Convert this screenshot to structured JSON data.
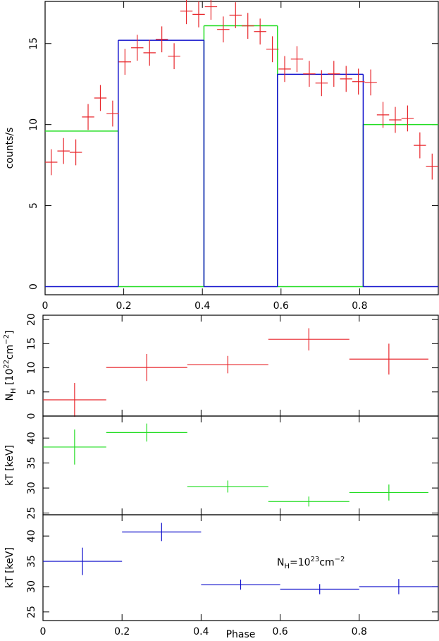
{
  "chart_data": [
    {
      "type": "errorbar",
      "ylabel": [
        {
          "text": "counts/s"
        }
      ],
      "xlim": [
        0,
        1
      ],
      "ylim": [
        -0.5,
        17.6
      ],
      "xticks": [
        0,
        0.2,
        0.4,
        0.6,
        0.8
      ],
      "yticks": [
        0,
        5,
        10,
        15
      ],
      "xtick_labels": true,
      "series": [
        {
          "color": "#e8262b",
          "x": [
            0.015625,
            0.046875,
            0.078125,
            0.109375,
            0.140625,
            0.171875,
            0.203125,
            0.234375,
            0.265625,
            0.296875,
            0.328125,
            0.359375,
            0.390625,
            0.421875,
            0.453125,
            0.484375,
            0.515625,
            0.546875,
            0.578125,
            0.609375,
            0.640625,
            0.671875,
            0.703125,
            0.734375,
            0.765625,
            0.796875,
            0.828125,
            0.859375,
            0.890625,
            0.921875,
            0.953125,
            0.984375
          ],
          "xerr": [
            0.015625,
            0.015625,
            0.015625,
            0.015625,
            0.015625,
            0.015625,
            0.015625,
            0.015625,
            0.015625,
            0.015625,
            0.015625,
            0.015625,
            0.015625,
            0.015625,
            0.015625,
            0.015625,
            0.015625,
            0.015625,
            0.015625,
            0.015625,
            0.015625,
            0.015625,
            0.015625,
            0.015625,
            0.015625,
            0.015625,
            0.015625,
            0.015625,
            0.015625,
            0.015625,
            0.015625,
            0.015625
          ],
          "values": [
            7.68,
            8.37,
            8.29,
            10.47,
            11.64,
            10.68,
            13.87,
            14.74,
            14.43,
            15.26,
            14.22,
            17.0,
            16.8,
            17.27,
            15.87,
            16.75,
            16.09,
            15.74,
            14.65,
            13.43,
            14.04,
            13.13,
            12.56,
            13.13,
            12.82,
            12.65,
            12.6,
            10.6,
            10.29,
            10.38,
            8.72,
            7.41
          ],
          "errors": [
            0.8,
            0.8,
            0.8,
            0.8,
            0.8,
            0.8,
            0.8,
            0.8,
            0.8,
            0.8,
            0.8,
            0.8,
            0.8,
            0.8,
            0.8,
            0.8,
            0.8,
            0.8,
            0.8,
            0.8,
            0.8,
            0.8,
            0.8,
            0.8,
            0.8,
            0.8,
            0.8,
            0.8,
            0.8,
            0.8,
            0.8,
            0.8
          ]
        }
      ],
      "steps": [
        {
          "color": "#22dd22",
          "bins": [
            0,
            0.186,
            0.404,
            0.591,
            0.809,
            1
          ],
          "values": [
            9.6,
            0,
            16.1,
            0,
            10.0
          ]
        },
        {
          "color": "#1010cc",
          "bins": [
            0,
            0.186,
            0.404,
            0.591,
            0.809,
            1
          ],
          "values": [
            0,
            15.2,
            0,
            13.1,
            0
          ]
        }
      ]
    },
    {
      "type": "errorbar",
      "ylabel": [
        {
          "text": "N"
        },
        {
          "text": "H",
          "shift": "sub"
        },
        {
          "text": " [10"
        },
        {
          "text": "22",
          "shift": "super"
        },
        {
          "text": "cm"
        },
        {
          "text": "−2",
          "shift": "super"
        },
        {
          "text": "]"
        }
      ],
      "xlim": [
        0,
        1
      ],
      "ylim": [
        0,
        20.9
      ],
      "xticks": [
        0,
        0.2,
        0.4,
        0.6,
        0.8
      ],
      "yticks": [
        0,
        5,
        10,
        15,
        20
      ],
      "xtick_labels": false,
      "series": [
        {
          "color": "#e8262b",
          "x": [
            0.08,
            0.2625,
            0.4675,
            0.6725,
            0.875
          ],
          "xerr": [
            0.08,
            0.1025,
            0.1025,
            0.1025,
            0.1
          ],
          "values": [
            3.36,
            10.07,
            10.66,
            15.9,
            11.8
          ],
          "errors": [
            3.5,
            2.8,
            1.8,
            2.3,
            3.2
          ]
        }
      ]
    },
    {
      "type": "errorbar",
      "ylabel": [
        {
          "text": "kT [keV]"
        }
      ],
      "xlim": [
        0,
        1
      ],
      "ylim": [
        24.65,
        44.4
      ],
      "xticks": [
        0,
        0.2,
        0.4,
        0.6,
        0.8
      ],
      "yticks": [
        25,
        30,
        35,
        40
      ],
      "xtick_labels": false,
      "series": [
        {
          "color": "#22dd22",
          "x": [
            0.08,
            0.2625,
            0.4675,
            0.6725,
            0.875
          ],
          "xerr": [
            0.08,
            0.1025,
            0.1025,
            0.1025,
            0.1
          ],
          "values": [
            38.2,
            41.1,
            30.3,
            27.3,
            29.1
          ],
          "errors": [
            3.5,
            1.8,
            1.2,
            1.0,
            1.6
          ]
        }
      ]
    },
    {
      "type": "errorbar",
      "ylabel": [
        {
          "text": "kT [keV]"
        }
      ],
      "xlabel": "Phase",
      "xlim": [
        0,
        1
      ],
      "ylim": [
        23.3,
        44.2
      ],
      "xticks": [
        0,
        0.2,
        0.4,
        0.6,
        0.8
      ],
      "yticks": [
        25,
        30,
        35,
        40
      ],
      "xtick_labels": true,
      "annotation": [
        {
          "text": "N"
        },
        {
          "text": "H",
          "shift": "sub"
        },
        {
          "text": "=10"
        },
        {
          "text": "23",
          "shift": "super"
        },
        {
          "text": "cm"
        },
        {
          "text": "−2",
          "shift": "super"
        }
      ],
      "series": [
        {
          "color": "#1010cc",
          "x": [
            0.1,
            0.3,
            0.5,
            0.7,
            0.9
          ],
          "xerr": [
            0.1,
            0.1,
            0.1,
            0.1,
            0.1
          ],
          "values": [
            35,
            40.8,
            30.4,
            29.5,
            30
          ],
          "errors": [
            2.7,
            1.8,
            1.0,
            1.0,
            1.5
          ]
        }
      ]
    }
  ]
}
